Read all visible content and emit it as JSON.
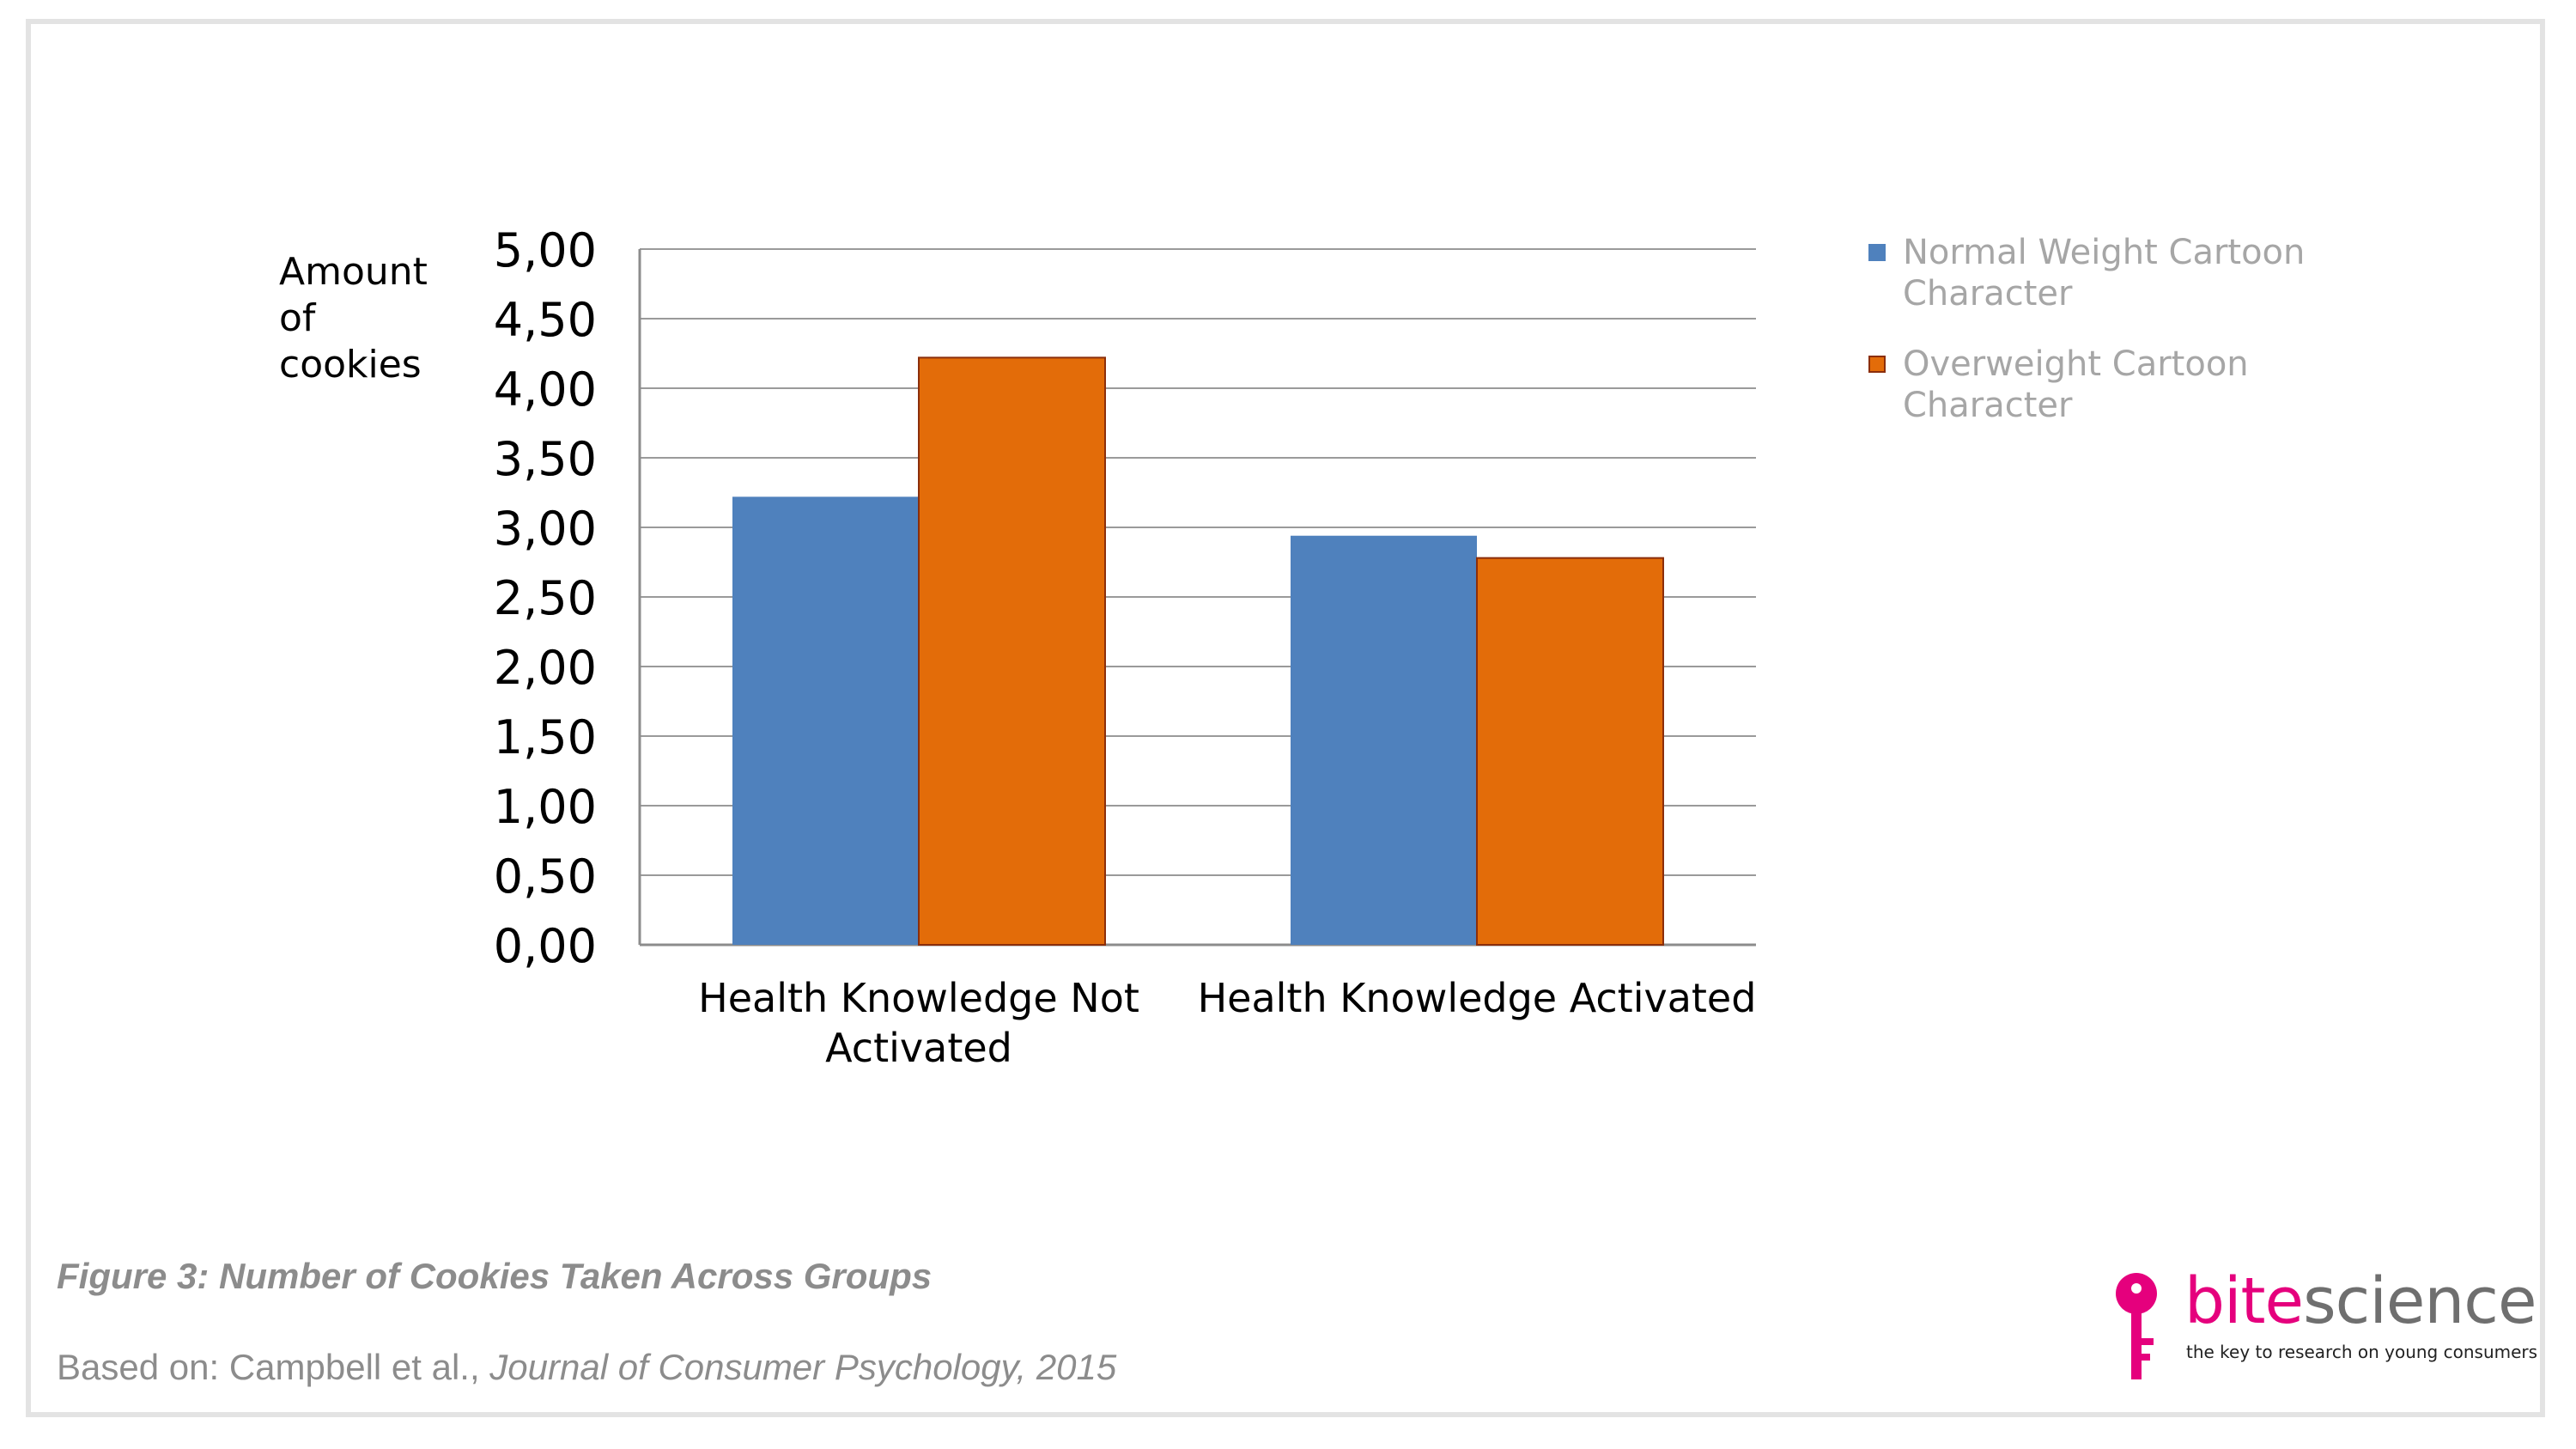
{
  "chart_data": {
    "type": "bar",
    "ylabel": [
      "Amount",
      "of",
      "cookies"
    ],
    "ylim": [
      0,
      5
    ],
    "yticks": [
      "0,00",
      "0,50",
      "1,00",
      "1,50",
      "2,00",
      "2,50",
      "3,00",
      "3,50",
      "4,00",
      "4,50",
      "5,00"
    ],
    "categories": [
      [
        "Health Knowledge Not",
        "Activated"
      ],
      [
        "Health Knowledge Activated"
      ]
    ],
    "series": [
      {
        "name": "Normal Weight Cartoon Character",
        "color": "#4f81bd",
        "values": [
          3.22,
          2.94
        ]
      },
      {
        "name": "Overweight Cartoon Character",
        "color": "#e36c09",
        "values": [
          4.22,
          2.78
        ]
      }
    ],
    "grid": true,
    "legend_position": "right"
  },
  "legend": {
    "items": [
      {
        "lines": [
          "Normal Weight Cartoon",
          "Character"
        ],
        "color": "#4f81bd"
      },
      {
        "lines": [
          "Overweight Cartoon",
          "Character"
        ],
        "color": "#e36c09"
      }
    ]
  },
  "caption": {
    "title": "Figure 3: Number of Cookies Taken Across Groups",
    "source_prefix": "Based on: Campbell et al., ",
    "source_journal": "Journal of Consumer Psychology, 2015"
  },
  "logo": {
    "name_part1": "bite",
    "name_part2": "science",
    "tagline": "the key to research on young consumers",
    "color": "#e5007d"
  }
}
